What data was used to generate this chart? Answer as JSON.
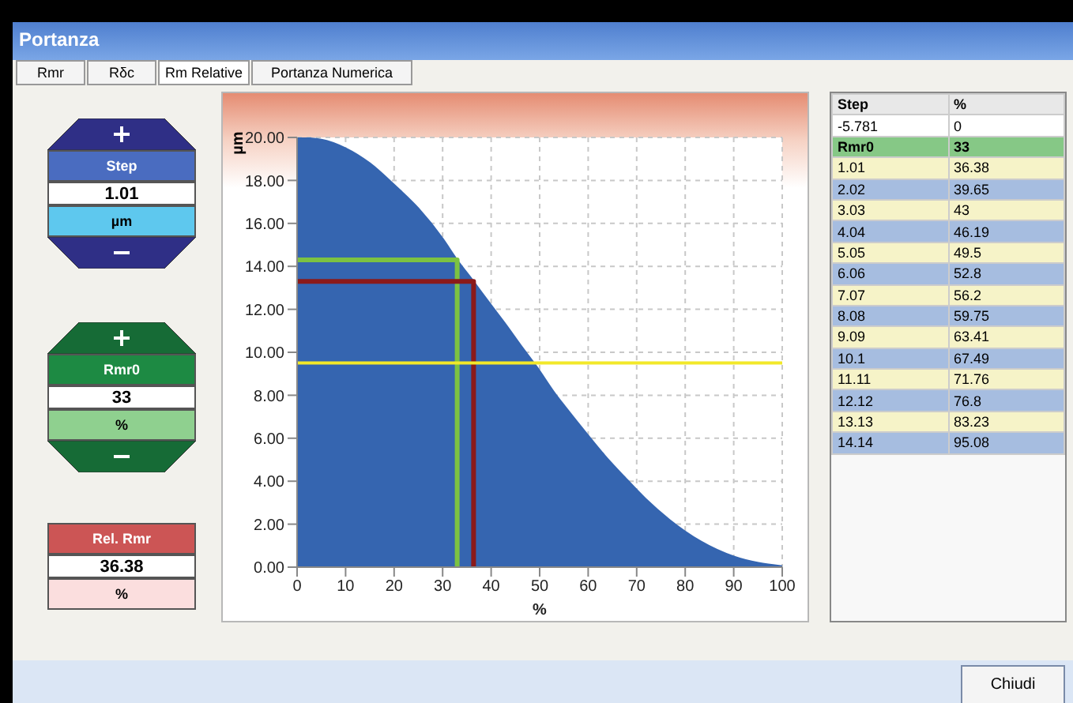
{
  "chart_data": [
    {
      "type": "area",
      "xlabel": "%",
      "ylabel": "µm",
      "xlim": [
        0,
        100
      ],
      "xticks": [
        0,
        10,
        20,
        30,
        40,
        50,
        60,
        70,
        80,
        90,
        100
      ],
      "ylim": [
        0,
        20
      ],
      "yticks": [
        {
          "value": 0,
          "label": "0.00"
        },
        {
          "value": 2,
          "label": "2.00"
        },
        {
          "value": 4,
          "label": "4.00"
        },
        {
          "value": 6,
          "label": "6.00"
        },
        {
          "value": 8,
          "label": "8.00"
        },
        {
          "value": 10,
          "label": "10.00"
        },
        {
          "value": 12,
          "label": "12.00"
        },
        {
          "value": 14,
          "label": "14.00"
        },
        {
          "value": 16,
          "label": "16.00"
        },
        {
          "value": 18,
          "label": "18.00"
        },
        {
          "value": 20,
          "label": "20.00"
        }
      ],
      "grid": true,
      "series": [
        {
          "type": "area",
          "color": "#3565b0",
          "x": [
            0,
            5,
            10,
            15,
            20,
            25,
            30,
            33,
            36.38,
            39.65,
            43,
            46.19,
            49.5,
            52.8,
            56.2,
            59.75,
            63.41,
            67.49,
            71.76,
            76.8,
            83.23,
            90,
            95.08,
            100
          ],
          "values": [
            20,
            19.9,
            19.5,
            18.8,
            17.8,
            16.7,
            15.3,
            14.3,
            13.3,
            12.3,
            11.3,
            10.3,
            9.3,
            8.2,
            7.2,
            6.2,
            5.2,
            4.2,
            3.2,
            2.2,
            1.2,
            0.5,
            0.2,
            0.05
          ]
        },
        {
          "type": "line",
          "color": "#7cc242",
          "x": [
            0,
            33,
            33
          ],
          "values": [
            14.3,
            14.3,
            0
          ]
        },
        {
          "type": "line",
          "color": "#8b1a1a",
          "x": [
            0,
            36.38,
            36.38
          ],
          "values": [
            13.3,
            13.3,
            0
          ]
        }
      ],
      "ref_lines": [
        {
          "axis": "y",
          "value": 9.5,
          "color": "#f2e829"
        }
      ],
      "annotations": [
        "Step",
        "%",
        "-5.781",
        "0",
        "Rmr0",
        "33",
        "1.01",
        "36.38",
        "2.02",
        "39.65",
        "3.03",
        "43",
        "4.04",
        "46.19",
        "5.05",
        "49.5",
        "6.06",
        "52.8",
        "7.07",
        "56.2",
        "8.08",
        "59.75",
        "9.09",
        "63.41",
        "10.1",
        "67.49",
        "11.11",
        "71.76",
        "12.12",
        "76.8",
        "13.13",
        "83.23",
        "14.14",
        "95.08"
      ]
    },
    {
      "type": "other",
      "title": "Portanza",
      "annotations": [
        "Rmr",
        "Rδc",
        "Rm Relative",
        "Portanza Numerica",
        "Chiudi"
      ]
    },
    {
      "type": "other",
      "annotations": [
        "Step",
        "1.01",
        "µm",
        "Rmr0",
        "33",
        "%",
        "Rel. Rmr",
        "36.38",
        "%"
      ]
    }
  ]
}
